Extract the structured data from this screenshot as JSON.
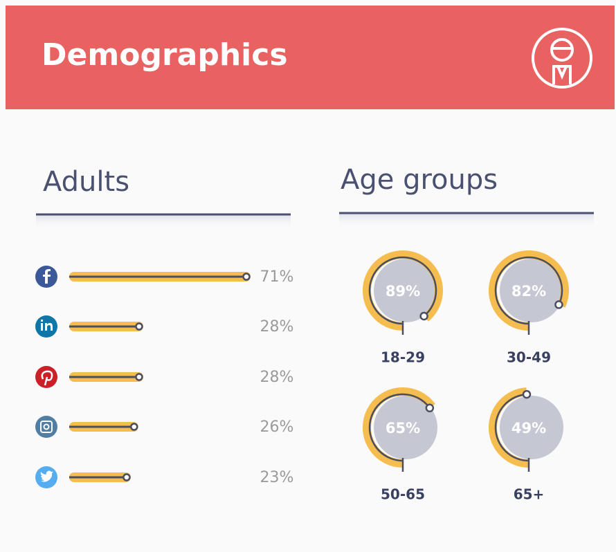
{
  "title": "Demographics",
  "chart_data": [
    {
      "type": "bar",
      "title": "Adults",
      "categories": [
        null,
        null,
        null,
        null,
        null
      ],
      "values": [
        71,
        28,
        28,
        26,
        23
      ],
      "value_labels": [
        "71%",
        "28%",
        "28%",
        "26%",
        "23%"
      ],
      "color": "#f5bc4f"
    },
    {
      "type": "gauge",
      "title": "Age groups",
      "categories": [
        "18-29",
        "30-49",
        "50-65",
        "65+"
      ],
      "values": [
        89,
        82,
        65,
        49
      ],
      "value_labels": [
        "89%",
        "82%",
        "65%",
        "49%"
      ],
      "color": "#f5bc4f"
    }
  ]
}
